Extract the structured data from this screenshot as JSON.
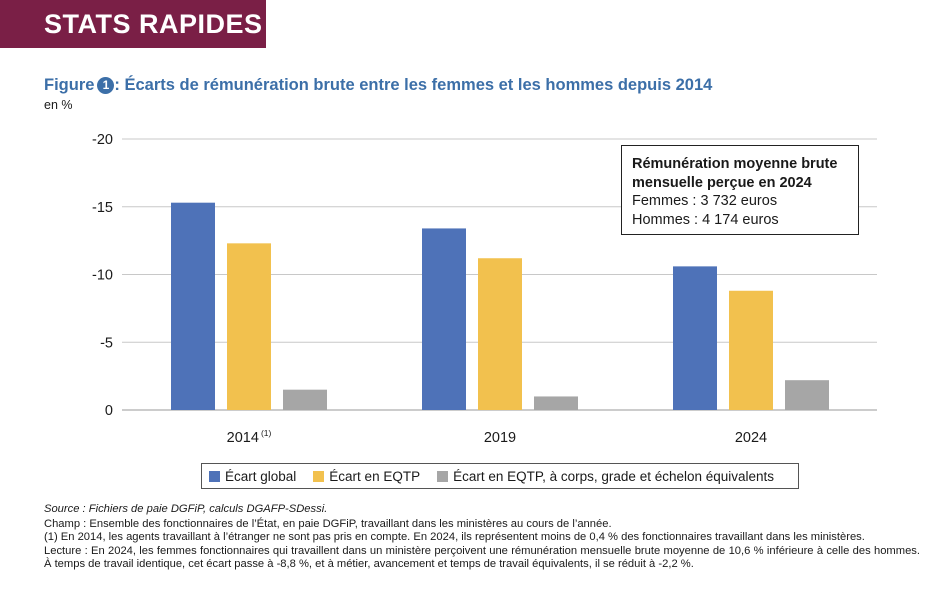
{
  "banner": {
    "label": "STATS RAPIDES",
    "color": "#7a1f46"
  },
  "figure": {
    "label": "Figure",
    "number": "1",
    "title": ": Écarts de rémunération brute entre les femmes et les hommes depuis 2014",
    "unit": "en %",
    "title_color": "#3c6fa8"
  },
  "chart_data": {
    "type": "bar",
    "categories": [
      "2014",
      "2019",
      "2024"
    ],
    "category_superscripts": [
      "(1)",
      "",
      ""
    ],
    "series": [
      {
        "name": "Écart global",
        "color": "#4e72b8",
        "values": [
          -15.3,
          -13.4,
          -10.6
        ]
      },
      {
        "name": "Écart en EQTP",
        "color": "#f2c14e",
        "values": [
          -12.3,
          -11.2,
          -8.8
        ]
      },
      {
        "name": "Écart en EQTP, à corps, grade et échelon équivalents",
        "color": "#a6a6a6",
        "values": [
          -1.5,
          -1.0,
          -2.2
        ]
      }
    ],
    "ylim": [
      0,
      -20
    ],
    "yticks": [
      -20,
      -15,
      -10,
      -5,
      0
    ],
    "y_inverted": true,
    "grid": true,
    "legend": "bottom"
  },
  "infobox": {
    "title_line1": "Rémunération moyenne brute",
    "title_line2": "mensuelle perçue en 2024",
    "femmes": "Femmes : 3 732 euros",
    "hommes": "Hommes : 4 174 euros"
  },
  "notes": {
    "source": "Source : Fichiers de paie DGFiP, calculs DGAFP-SDessi.",
    "champ": "Champ : Ensemble des fonctionnaires de l’État, en paie DGFiP, travaillant dans les ministères au cours de l’année.",
    "note1": "(1) En 2014, les agents travaillant à l’étranger ne sont pas pris en compte. En 2024, ils représentent moins de 0,4 % des fonctionnaires travaillant dans les ministères.",
    "lecture": "Lecture : En 2024, les femmes fonctionnaires qui travaillent dans un ministère perçoivent une rémunération mensuelle brute moyenne de 10,6 % inférieure à celle des hommes. À temps de travail identique, cet écart passe à -8,8 %, et à métier, avancement et temps de travail équivalents, il se réduit à -2,2 %."
  }
}
